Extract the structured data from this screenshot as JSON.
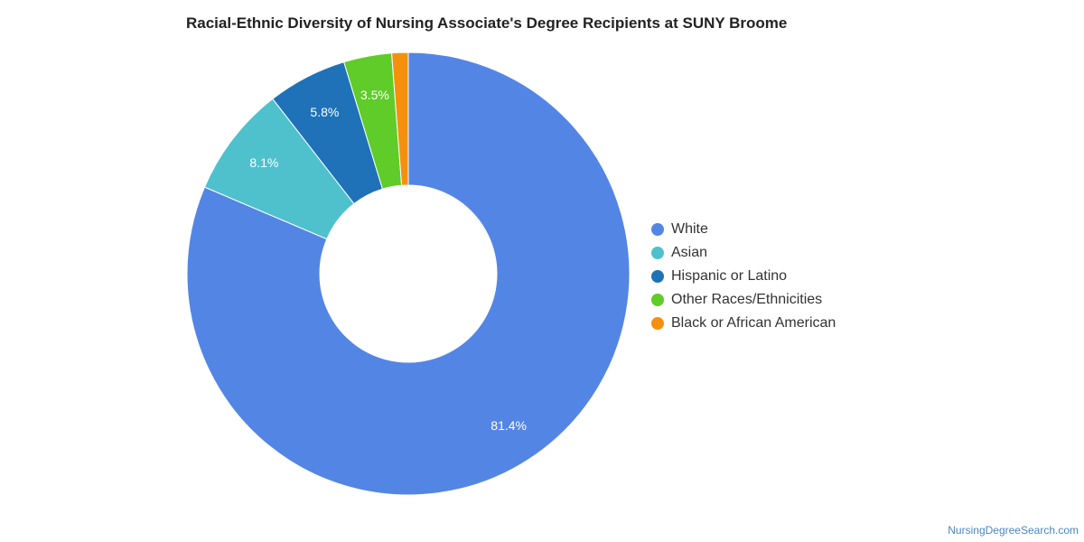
{
  "chart_data": {
    "type": "pie",
    "title": "Racial-Ethnic Diversity of Nursing Associate's Degree Recipients at SUNY Broome",
    "donut": true,
    "legend_position": "right",
    "categories": [
      "White",
      "Asian",
      "Hispanic or Latino",
      "Other Races/Ethnicities",
      "Black or African American"
    ],
    "values": [
      81.4,
      8.1,
      5.8,
      3.5,
      1.2
    ],
    "labels": [
      "81.4%",
      "8.1%",
      "5.8%",
      "3.5%",
      ""
    ],
    "colors": [
      "#5386e4",
      "#4fc1cd",
      "#1f72b8",
      "#5fcc29",
      "#f5900d"
    ]
  },
  "footer": {
    "credit": "NursingDegreeSearch.com"
  }
}
